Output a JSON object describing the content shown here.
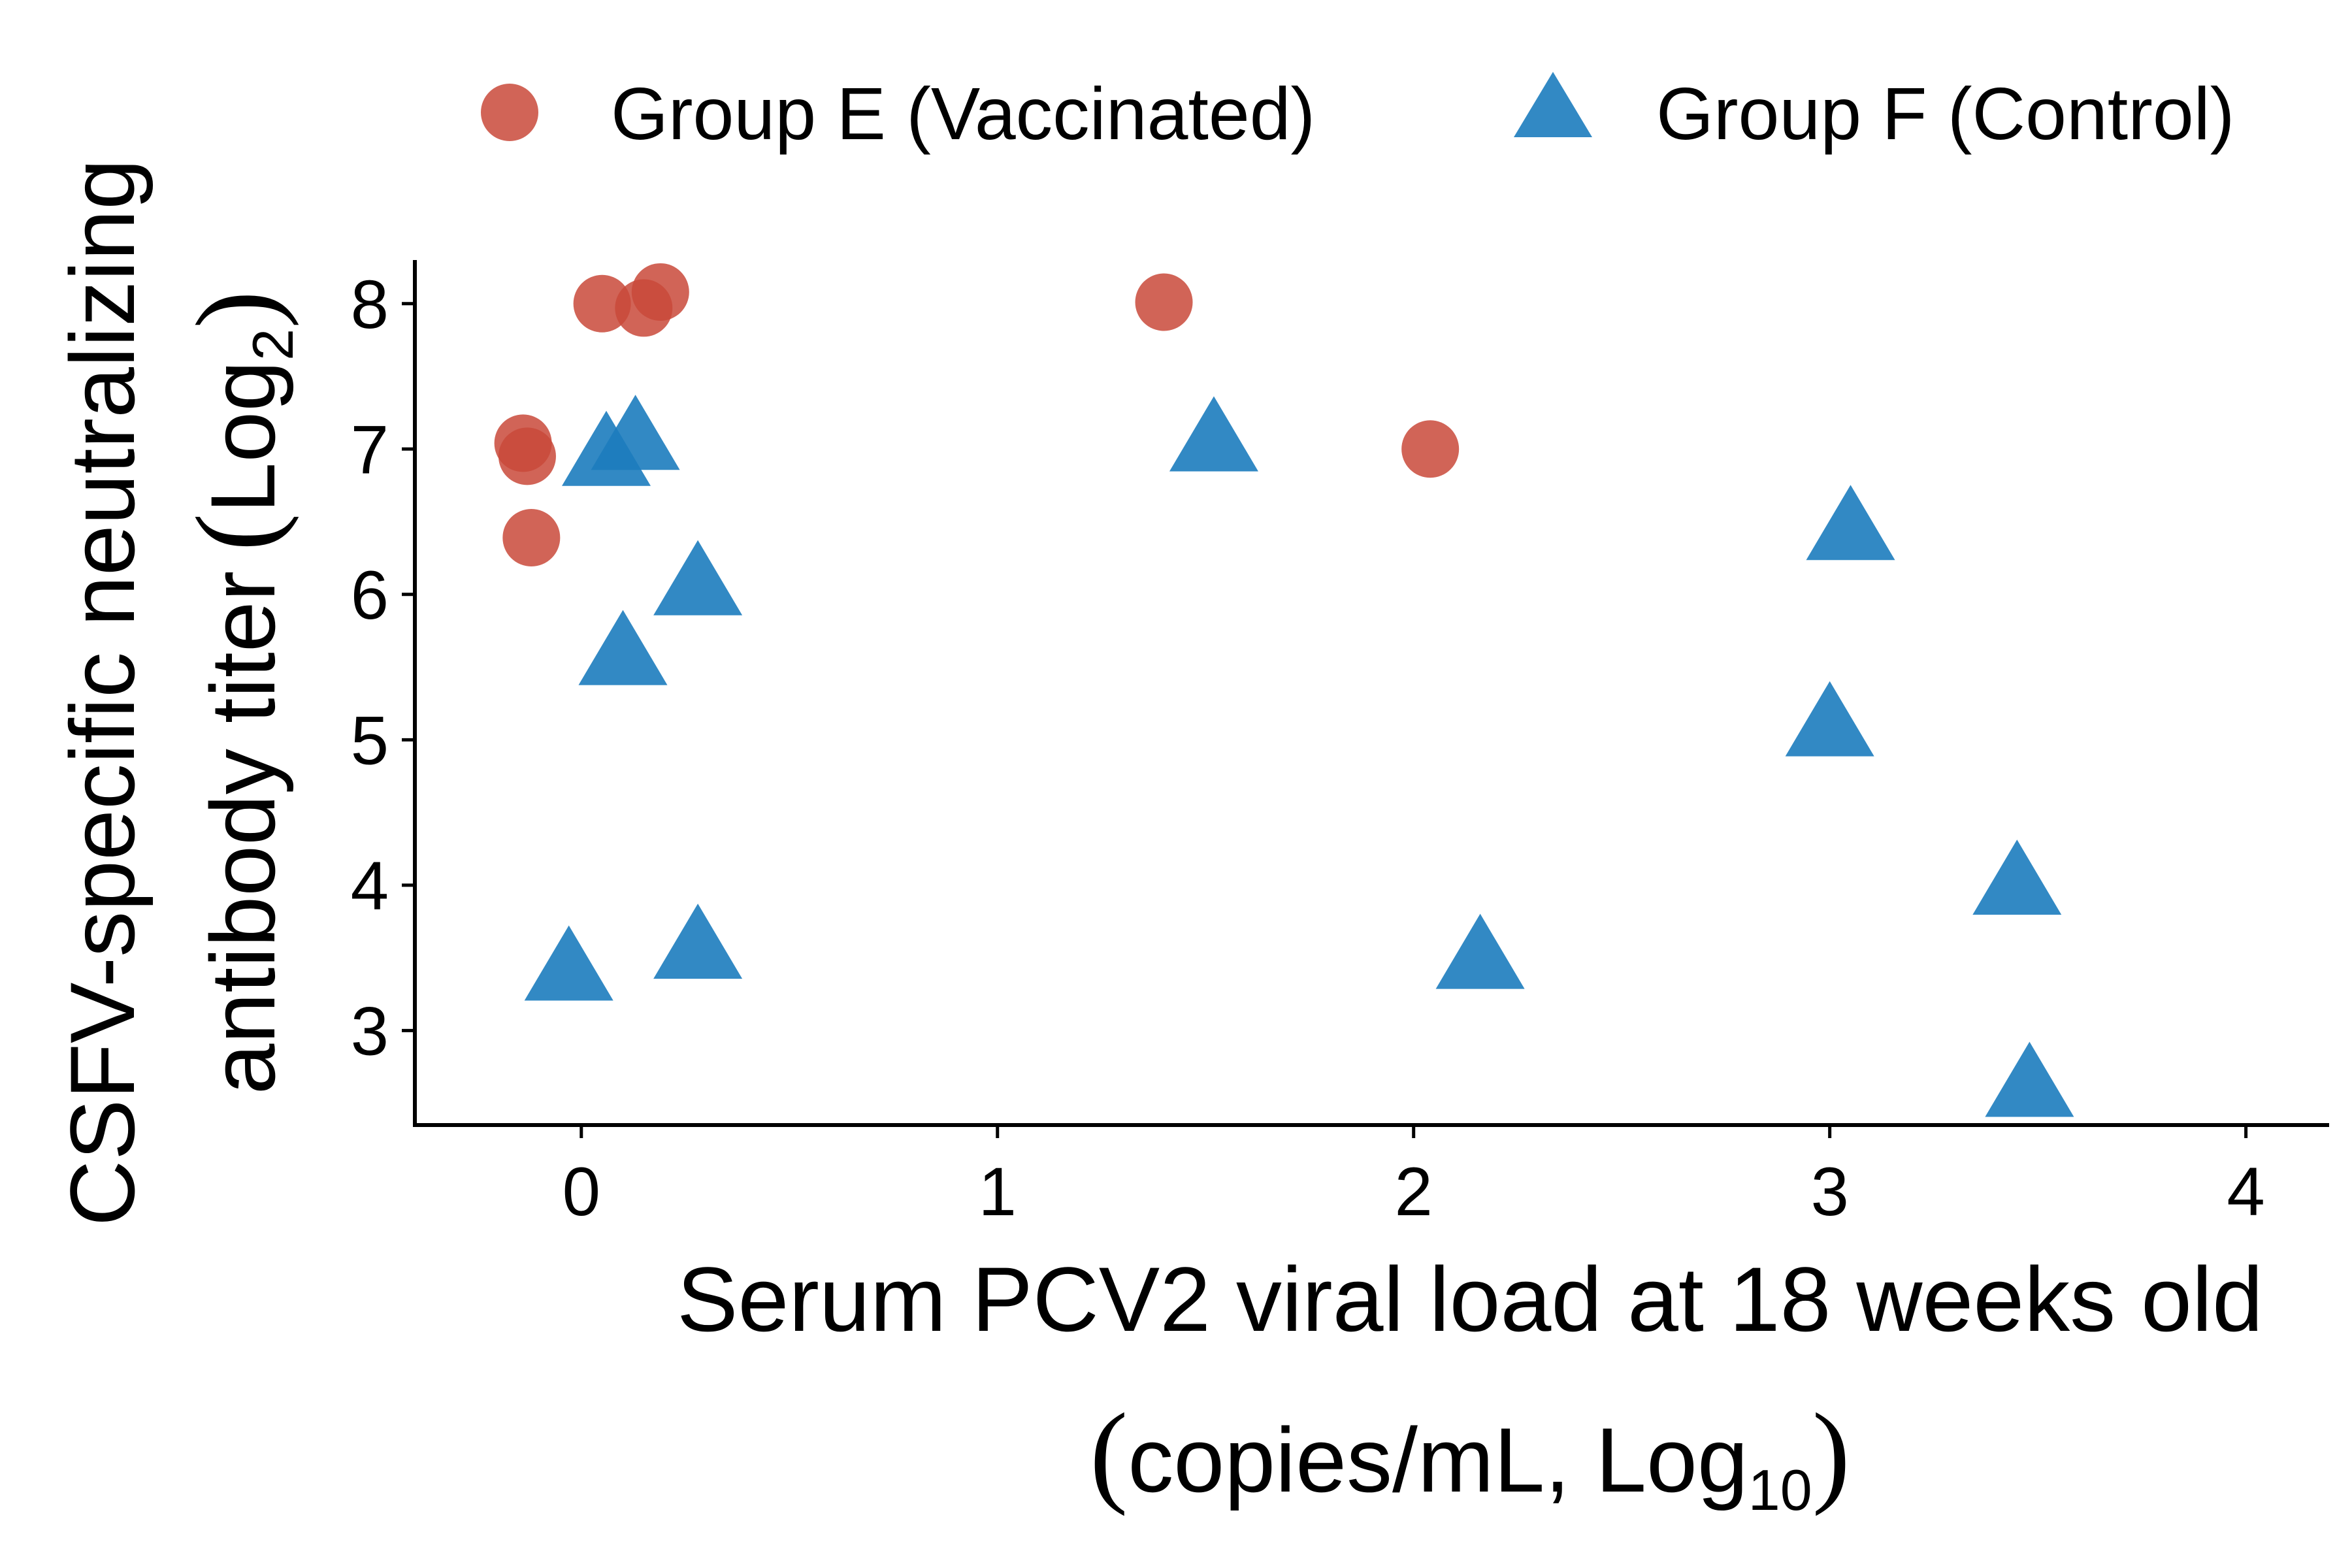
{
  "chart_data": {
    "type": "scatter",
    "xlabel": {
      "line1": "Serum PCV2 viral load at 18 weeks old",
      "line2_prefix": "copies/mL, Log",
      "line2_subscript": "10"
    },
    "ylabel": {
      "line1": "CSFV-specific neutralizing",
      "line2_prefix": "antibody titer",
      "line2_log": "Log",
      "line2_subscript": "2"
    },
    "xlim": [
      -0.4,
      4.2
    ],
    "ylim": [
      2.35,
      8.3
    ],
    "x_ticks": [
      "0",
      "1",
      "2",
      "3",
      "4"
    ],
    "y_ticks": [
      "3",
      "4",
      "5",
      "6",
      "7",
      "8"
    ],
    "legend_position": "top",
    "series": [
      {
        "name": "Group E (Vaccinated)",
        "marker": "circle",
        "color": "#C9493A",
        "points": [
          {
            "x": 0.05,
            "y": 8.0
          },
          {
            "x": 0.15,
            "y": 7.97
          },
          {
            "x": 0.19,
            "y": 8.08
          },
          {
            "x": 1.4,
            "y": 8.01
          },
          {
            "x": -0.14,
            "y": 7.04
          },
          {
            "x": -0.13,
            "y": 6.95
          },
          {
            "x": -0.12,
            "y": 6.39
          },
          {
            "x": 2.04,
            "y": 7.0
          }
        ]
      },
      {
        "name": "Group F (Control)",
        "marker": "triangle",
        "color": "#1C7CBE",
        "points": [
          {
            "x": 0.06,
            "y": 6.98
          },
          {
            "x": 0.13,
            "y": 7.09
          },
          {
            "x": 0.28,
            "y": 6.09
          },
          {
            "x": 0.1,
            "y": 5.61
          },
          {
            "x": -0.03,
            "y": 3.44
          },
          {
            "x": 0.28,
            "y": 3.59
          },
          {
            "x": 1.52,
            "y": 7.08
          },
          {
            "x": 2.16,
            "y": 3.52
          },
          {
            "x": 3.05,
            "y": 6.47
          },
          {
            "x": 3.0,
            "y": 5.12
          },
          {
            "x": 3.45,
            "y": 4.03
          },
          {
            "x": 3.48,
            "y": 2.64
          }
        ]
      }
    ]
  }
}
